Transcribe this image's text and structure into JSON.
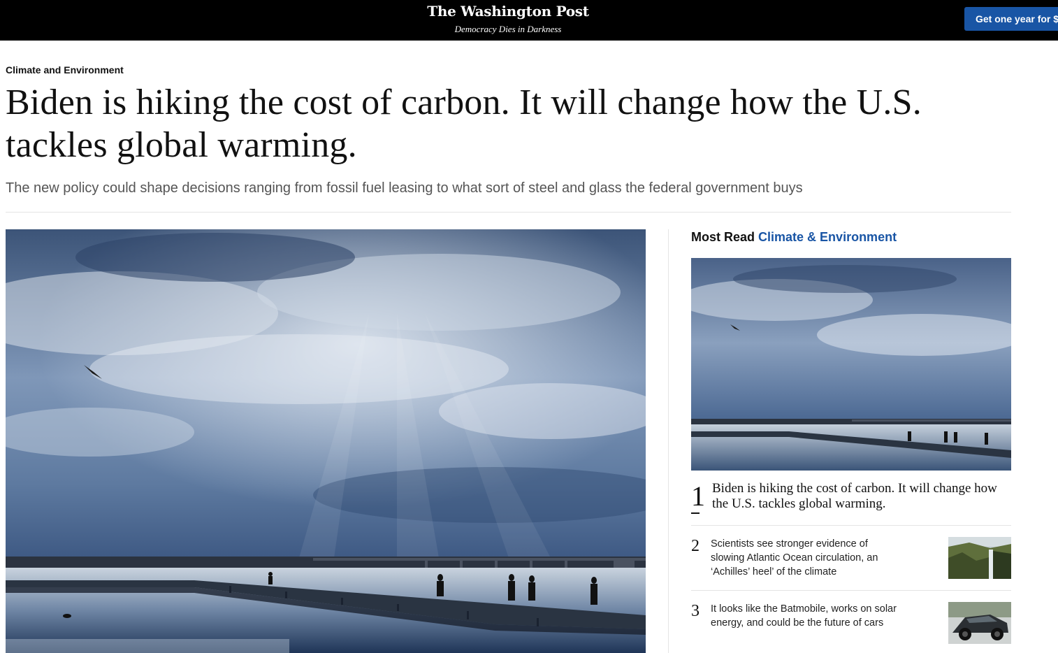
{
  "header": {
    "logo": "The Washington Post",
    "tagline": "Democracy Dies in Darkness",
    "cta_label": "Get one year for $"
  },
  "article": {
    "kicker": "Climate and Environment",
    "headline": "Biden is hiking the cost of carbon. It will change how the U.S. tackles global warming.",
    "dek": "The new policy could shape decisions ranging from fossil fuel leasing to what sort of steel and glass the federal government buys"
  },
  "most_read": {
    "title_prefix": "Most Read",
    "title_section": "Climate & Environment",
    "items": [
      {
        "rank": "1",
        "headline": "Biden is hiking the cost of carbon. It will change how the U.S. tackles global warming."
      },
      {
        "rank": "2",
        "headline": "Scientists see stronger evidence of slowing Atlantic Ocean circulation, an ‘Achilles’ heel’ of the climate"
      },
      {
        "rank": "3",
        "headline": "It looks like the Batmobile, works on solar energy, and could be the future of cars"
      }
    ]
  },
  "colors": {
    "topbar": "#000000",
    "accent_blue": "#1955a5"
  }
}
